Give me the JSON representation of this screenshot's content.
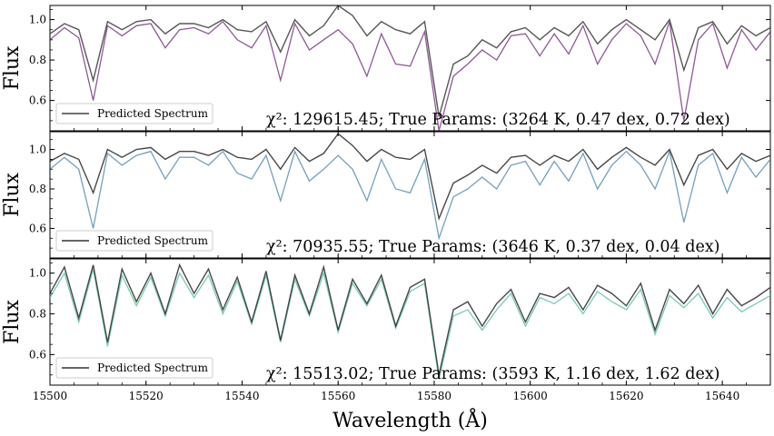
{
  "chart_data": [
    {
      "type": "line",
      "ylabel": "Flux",
      "xlim": [
        15500,
        15650
      ],
      "ylim": [
        0.45,
        1.07
      ],
      "yticks": [
        0.6,
        0.8,
        1.0
      ],
      "annotation": "χ²: 129615.45; True Params: (3264 K, 0.47 dex, 0.72 dex)",
      "legend": {
        "label": "Predicted Spectrum",
        "position": "lower-left"
      },
      "colors": {
        "true": "#7a3b84",
        "predicted": "#444444"
      },
      "series": [
        {
          "name": "Predicted Spectrum",
          "x": [
            15500,
            15503,
            15506,
            15509,
            15512,
            15515,
            15518,
            15521,
            15524,
            15527,
            15530,
            15533,
            15536,
            15539,
            15542,
            15545,
            15548,
            15551,
            15554,
            15557,
            15560,
            15563,
            15566,
            15569,
            15572,
            15575,
            15578,
            15581,
            15584,
            15587,
            15590,
            15593,
            15596,
            15599,
            15602,
            15605,
            15608,
            15611,
            15614,
            15617,
            15620,
            15623,
            15626,
            15629,
            15632,
            15635,
            15638,
            15641,
            15644,
            15647,
            15650
          ],
          "y": [
            0.93,
            0.98,
            0.95,
            0.7,
            0.99,
            0.95,
            0.99,
            1.0,
            0.93,
            0.98,
            0.98,
            0.96,
            1.0,
            0.95,
            0.94,
            0.99,
            0.84,
            1.0,
            0.92,
            0.97,
            1.07,
            1.02,
            0.92,
            0.99,
            0.95,
            0.93,
            0.99,
            0.52,
            0.78,
            0.82,
            0.9,
            0.86,
            0.94,
            0.96,
            0.9,
            0.96,
            0.92,
            0.99,
            0.88,
            0.95,
            1.0,
            0.95,
            0.9,
            1.0,
            0.75,
            0.96,
            0.99,
            0.88,
            0.97,
            0.92,
            0.96
          ]
        },
        {
          "name": "",
          "x": [
            15500,
            15503,
            15506,
            15509,
            15512,
            15515,
            15518,
            15521,
            15524,
            15527,
            15530,
            15533,
            15536,
            15539,
            15542,
            15545,
            15548,
            15551,
            15554,
            15557,
            15560,
            15563,
            15566,
            15569,
            15572,
            15575,
            15578,
            15581,
            15584,
            15587,
            15590,
            15593,
            15596,
            15599,
            15602,
            15605,
            15608,
            15611,
            15614,
            15617,
            15620,
            15623,
            15626,
            15629,
            15632,
            15635,
            15638,
            15641,
            15644,
            15647,
            15650
          ],
          "y": [
            0.9,
            0.96,
            0.91,
            0.6,
            0.97,
            0.92,
            0.97,
            0.98,
            0.86,
            0.95,
            0.96,
            0.93,
            0.99,
            0.9,
            0.86,
            0.97,
            0.7,
            0.98,
            0.85,
            0.9,
            0.95,
            0.88,
            0.72,
            0.93,
            0.78,
            0.77,
            0.94,
            0.45,
            0.72,
            0.78,
            0.85,
            0.8,
            0.92,
            0.93,
            0.82,
            0.93,
            0.83,
            0.97,
            0.78,
            0.9,
            0.98,
            0.92,
            0.78,
            0.99,
            0.5,
            0.9,
            0.98,
            0.76,
            0.95,
            0.85,
            0.94
          ]
        }
      ]
    },
    {
      "type": "line",
      "ylabel": "Flux",
      "xlim": [
        15500,
        15650
      ],
      "ylim": [
        0.45,
        1.09
      ],
      "yticks": [
        0.6,
        0.8,
        1.0
      ],
      "annotation": "χ²: 70935.55; True Params: (3646 K, 0.37 dex, 0.04 dex)",
      "legend": {
        "label": "Predicted Spectrum",
        "position": "lower-left"
      },
      "colors": {
        "true": "#5c8fb0",
        "predicted": "#333333"
      },
      "series": [
        {
          "name": "Predicted Spectrum",
          "x": [
            15500,
            15503,
            15506,
            15509,
            15512,
            15515,
            15518,
            15521,
            15524,
            15527,
            15530,
            15533,
            15536,
            15539,
            15542,
            15545,
            15548,
            15551,
            15554,
            15557,
            15560,
            15563,
            15566,
            15569,
            15572,
            15575,
            15578,
            15581,
            15584,
            15587,
            15590,
            15593,
            15596,
            15599,
            15602,
            15605,
            15608,
            15611,
            15614,
            15617,
            15620,
            15623,
            15626,
            15629,
            15632,
            15635,
            15638,
            15641,
            15644,
            15647,
            15650
          ],
          "y": [
            0.94,
            0.98,
            0.95,
            0.78,
            1.0,
            0.96,
            1.0,
            1.01,
            0.95,
            0.99,
            0.99,
            0.97,
            1.0,
            0.96,
            0.95,
            1.0,
            0.9,
            1.01,
            0.94,
            0.98,
            1.08,
            1.02,
            0.94,
            1.0,
            0.96,
            0.95,
            1.0,
            0.65,
            0.83,
            0.87,
            0.92,
            0.88,
            0.96,
            0.97,
            0.92,
            0.97,
            0.94,
            1.0,
            0.9,
            0.96,
            1.01,
            0.96,
            0.92,
            1.0,
            0.82,
            0.97,
            1.0,
            0.9,
            0.98,
            0.94,
            0.97
          ]
        },
        {
          "name": "",
          "x": [
            15500,
            15503,
            15506,
            15509,
            15512,
            15515,
            15518,
            15521,
            15524,
            15527,
            15530,
            15533,
            15536,
            15539,
            15542,
            15545,
            15548,
            15551,
            15554,
            15557,
            15560,
            15563,
            15566,
            15569,
            15572,
            15575,
            15578,
            15581,
            15584,
            15587,
            15590,
            15593,
            15596,
            15599,
            15602,
            15605,
            15608,
            15611,
            15614,
            15617,
            15620,
            15623,
            15626,
            15629,
            15632,
            15635,
            15638,
            15641,
            15644,
            15647,
            15650
          ],
          "y": [
            0.9,
            0.96,
            0.9,
            0.6,
            0.98,
            0.92,
            0.97,
            0.99,
            0.85,
            0.96,
            0.96,
            0.92,
            0.99,
            0.88,
            0.85,
            0.97,
            0.74,
            0.99,
            0.84,
            0.9,
            0.97,
            0.9,
            0.74,
            0.95,
            0.8,
            0.78,
            0.95,
            0.55,
            0.76,
            0.8,
            0.86,
            0.8,
            0.92,
            0.94,
            0.82,
            0.94,
            0.84,
            0.98,
            0.8,
            0.92,
            0.99,
            0.92,
            0.8,
            0.99,
            0.63,
            0.92,
            0.98,
            0.78,
            0.96,
            0.86,
            0.95
          ]
        }
      ]
    },
    {
      "type": "line",
      "ylabel": "Flux",
      "xlabel": "Wavelength (Å)",
      "xlim": [
        15500,
        15650
      ],
      "xticks": [
        15500,
        15520,
        15540,
        15560,
        15580,
        15600,
        15620,
        15640
      ],
      "ylim": [
        0.45,
        1.07
      ],
      "yticks": [
        0.6,
        0.8,
        1.0
      ],
      "annotation": "χ²: 15513.02; True Params: (3593 K, 1.16 dex, 1.62 dex)",
      "legend": {
        "label": "Predicted Spectrum",
        "position": "lower-left"
      },
      "colors": {
        "true": "#5fc39a",
        "predicted": "#333333"
      },
      "series": [
        {
          "name": "Predicted Spectrum",
          "x": [
            15500,
            15503,
            15506,
            15509,
            15512,
            15515,
            15518,
            15521,
            15524,
            15527,
            15530,
            15533,
            15536,
            15539,
            15542,
            15545,
            15548,
            15551,
            15554,
            15557,
            15560,
            15563,
            15566,
            15569,
            15572,
            15575,
            15578,
            15581,
            15584,
            15587,
            15590,
            15593,
            15596,
            15599,
            15602,
            15605,
            15608,
            15611,
            15614,
            15617,
            15620,
            15623,
            15626,
            15629,
            15632,
            15635,
            15638,
            15641,
            15644,
            15647,
            15650
          ],
          "y": [
            0.9,
            1.03,
            0.78,
            1.04,
            0.66,
            1.02,
            0.86,
            1.0,
            0.8,
            1.04,
            0.9,
            1.02,
            0.82,
            0.98,
            0.76,
            1.01,
            0.67,
            0.99,
            0.8,
            1.03,
            0.72,
            0.97,
            0.85,
            0.99,
            0.74,
            0.93,
            0.97,
            0.5,
            0.82,
            0.86,
            0.74,
            0.85,
            0.92,
            0.76,
            0.9,
            0.88,
            0.93,
            0.82,
            0.94,
            0.9,
            0.84,
            0.95,
            0.72,
            0.92,
            0.85,
            0.94,
            0.8,
            0.92,
            0.84,
            0.88,
            0.93
          ]
        },
        {
          "name": "",
          "x": [
            15500,
            15503,
            15506,
            15509,
            15512,
            15515,
            15518,
            15521,
            15524,
            15527,
            15530,
            15533,
            15536,
            15539,
            15542,
            15545,
            15548,
            15551,
            15554,
            15557,
            15560,
            15563,
            15566,
            15569,
            15572,
            15575,
            15578,
            15581,
            15584,
            15587,
            15590,
            15593,
            15596,
            15599,
            15602,
            15605,
            15608,
            15611,
            15614,
            15617,
            15620,
            15623,
            15626,
            15629,
            15632,
            15635,
            15638,
            15641,
            15644,
            15647,
            15650
          ],
          "y": [
            0.88,
            1.0,
            0.76,
            1.02,
            0.64,
            0.99,
            0.84,
            0.98,
            0.79,
            1.0,
            0.88,
            0.99,
            0.8,
            0.96,
            0.75,
            0.99,
            0.66,
            0.97,
            0.79,
            1.0,
            0.71,
            0.95,
            0.84,
            0.97,
            0.73,
            0.91,
            0.95,
            0.48,
            0.79,
            0.82,
            0.72,
            0.82,
            0.9,
            0.74,
            0.88,
            0.85,
            0.9,
            0.8,
            0.91,
            0.86,
            0.82,
            0.92,
            0.7,
            0.89,
            0.83,
            0.9,
            0.78,
            0.88,
            0.81,
            0.85,
            0.89
          ]
        }
      ]
    }
  ]
}
